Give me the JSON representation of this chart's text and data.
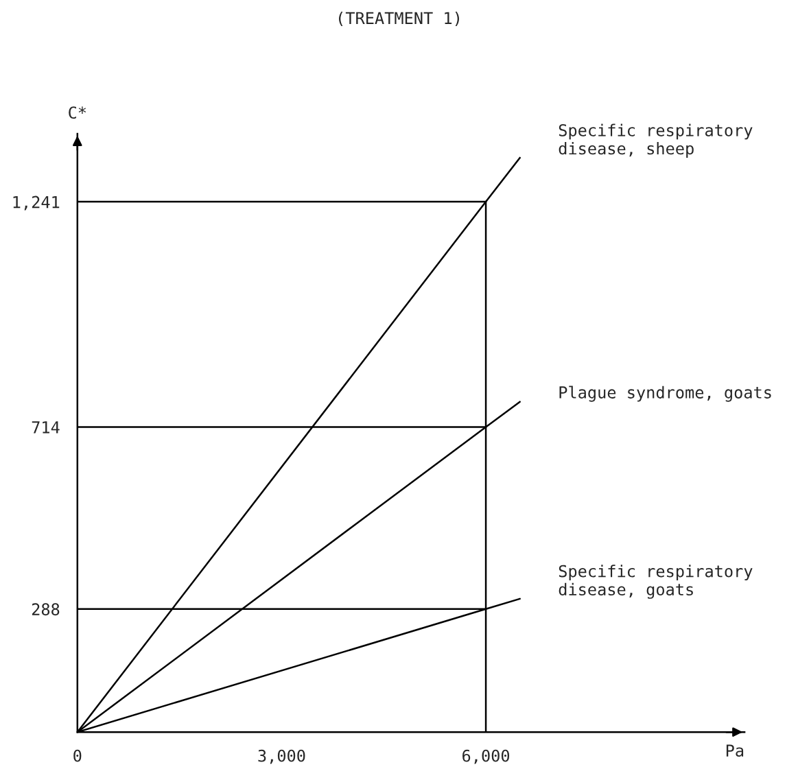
{
  "chart_data": {
    "type": "line",
    "title": "(TREATMENT 1)",
    "xlabel": "Pa",
    "ylabel": "C*",
    "xlim": [
      0,
      9800
    ],
    "ylim": [
      0,
      1400
    ],
    "xticks": [
      {
        "value": 0,
        "label": "0"
      },
      {
        "value": 3000,
        "label": "3,000"
      },
      {
        "value": 6000,
        "label": "6,000"
      }
    ],
    "yticks": [
      {
        "value": 288,
        "label": "288"
      },
      {
        "value": 714,
        "label": "714"
      },
      {
        "value": 1241,
        "label": "1,241"
      }
    ],
    "series": [
      {
        "name": "Specific respiratory\ndisease, sheep",
        "color": "#000000",
        "x": [
          0,
          6000,
          6500
        ],
        "values": [
          0,
          1241,
          1344
        ]
      },
      {
        "name": "Plague syndrome, goats",
        "color": "#000000",
        "x": [
          0,
          6000,
          6500
        ],
        "values": [
          0,
          714,
          773
        ]
      },
      {
        "name": "Specific respiratory\ndisease, goats",
        "color": "#000000",
        "x": [
          0,
          6000,
          6500
        ],
        "values": [
          0,
          288,
          312
        ]
      }
    ],
    "ref_lines": [
      {
        "axis": "y",
        "value": 1241,
        "color": "#000000"
      },
      {
        "axis": "y",
        "value": 714,
        "color": "#000000"
      },
      {
        "axis": "y",
        "value": 288,
        "color": "#000000"
      },
      {
        "axis": "x",
        "value": 6000,
        "color": "#000000"
      }
    ],
    "grid": false,
    "legend": false,
    "marker": "none",
    "line_style": "solid"
  }
}
